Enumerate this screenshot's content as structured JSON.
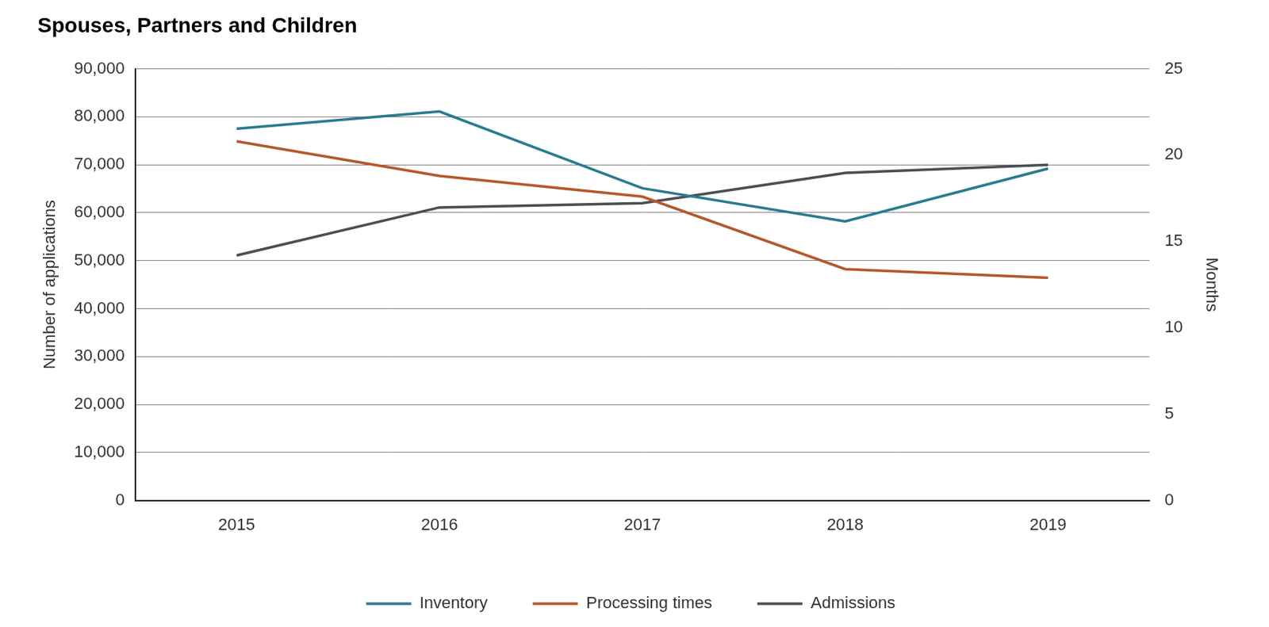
{
  "chart_data": {
    "type": "line",
    "title": "Spouses, Partners and Children",
    "y_label": "Number of applications",
    "y2_label": "Months",
    "categories": [
      "2015",
      "2016",
      "2017",
      "2018",
      "2019"
    ],
    "series": [
      {
        "name": "Inventory",
        "color": "#2a7b8f",
        "values": [
          77500,
          81100,
          65100,
          58200,
          69200
        ]
      },
      {
        "name": "Processing times",
        "color": "#b5582a",
        "axis": "y2",
        "values": [
          20.8,
          18.8,
          17.6,
          13.4,
          12.9
        ]
      },
      {
        "name": "Admissions",
        "color": "#4a4f54",
        "values": [
          51100,
          61100,
          62000,
          68300,
          70000
        ]
      }
    ],
    "ylim": [
      0,
      90000
    ],
    "yticks": [
      0,
      {
        "value": 10000,
        "label": "10,000"
      },
      {
        "value": 20000,
        "label": "20,000"
      },
      {
        "value": 30000,
        "label": "30,000"
      },
      {
        "value": 40000,
        "label": "40,000"
      },
      {
        "value": 50000,
        "label": "50,000"
      },
      {
        "value": 60000,
        "label": "60,000"
      },
      {
        "value": 70000,
        "label": "70,000"
      },
      {
        "value": 80000,
        "label": "80,000"
      },
      {
        "value": 90000,
        "label": "90,000"
      }
    ],
    "y2lim": [
      0,
      25
    ],
    "y2ticks": [
      0,
      5,
      10,
      15,
      20,
      25
    ],
    "grid": true,
    "legend": "bottom"
  }
}
